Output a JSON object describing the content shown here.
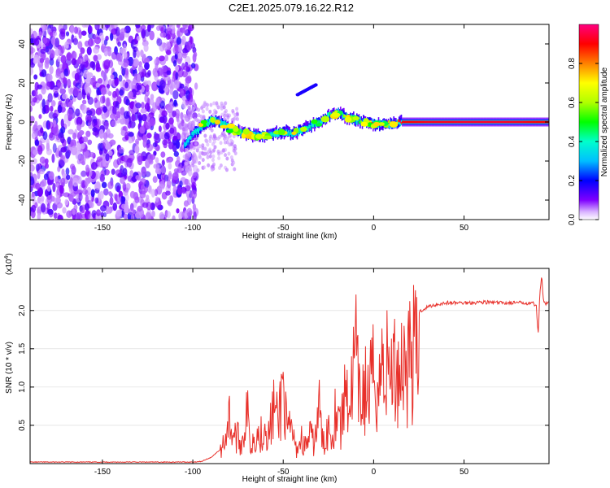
{
  "title": "C2E1.2025.079.16.22.R12",
  "chart_data": [
    {
      "type": "heatmap",
      "xlabel": "Height of straight line (km)",
      "ylabel": "Frequency (Hz)",
      "xlim": [
        -190,
        97
      ],
      "ylim": [
        -50,
        50
      ],
      "xticks": [
        -150,
        -100,
        -50,
        0,
        50
      ],
      "yticks": [
        -40,
        -20,
        0,
        20,
        40
      ],
      "colorbar": {
        "label": "Normalized spectral amplitude",
        "range": [
          0,
          1
        ],
        "ticks": [
          "0.0",
          "0.2",
          "0.4",
          "0.6",
          "0.8"
        ],
        "tick_values": [
          0.0,
          0.2,
          0.4,
          0.6,
          0.8
        ],
        "colors": [
          "#ffffff",
          "#d9b3ff",
          "#7f00ff",
          "#0000ff",
          "#00bfff",
          "#00ffcc",
          "#00ff00",
          "#b0ff00",
          "#ffff00",
          "#ff8000",
          "#ff0000",
          "#ff0080"
        ]
      },
      "ridge": {
        "x": [
          -105,
          -100,
          -95,
          -90,
          -85,
          -80,
          -75,
          -70,
          -65,
          -60,
          -55,
          -50,
          -45,
          -40,
          -35,
          -30,
          -25,
          -20,
          -15,
          -10,
          -5,
          0,
          5,
          10,
          15,
          20,
          30,
          40,
          50,
          60,
          70,
          80,
          90,
          97
        ],
        "y": [
          -12,
          -6,
          -2,
          1,
          0,
          -3,
          -5,
          -6,
          -7,
          -7,
          -6,
          -5,
          -6,
          -4,
          -2,
          0,
          3,
          5,
          2,
          1,
          0,
          -1,
          -1,
          -1,
          0,
          0,
          0,
          0,
          0,
          0,
          0,
          0,
          0,
          0
        ],
        "amplitude": [
          0.3,
          0.35,
          0.4,
          0.45,
          0.4,
          0.35,
          0.4,
          0.38,
          0.36,
          0.38,
          0.35,
          0.4,
          0.35,
          0.4,
          0.35,
          0.4,
          0.45,
          0.5,
          0.5,
          0.6,
          0.65,
          0.8,
          0.8,
          0.7,
          0.9,
          0.9,
          0.92,
          0.92,
          0.93,
          0.93,
          0.93,
          0.92,
          0.9,
          0.9
        ]
      },
      "secondary_streak": {
        "x": [
          -42,
          -32
        ],
        "y": [
          14,
          19
        ],
        "amplitude": 0.18
      }
    },
    {
      "type": "line",
      "xlabel": "Height of straight line (km)",
      "ylabel": "SNR (10 * v/v)",
      "yscale_label": "(x10",
      "yscale_exp": "4",
      "yscale_close": ")",
      "xlim": [
        -190,
        97
      ],
      "ylim": [
        0,
        2.55
      ],
      "xticks": [
        -150,
        -100,
        -50,
        0,
        50
      ],
      "yticks": [
        "0.5",
        "1.0",
        "1.5",
        "2.0"
      ],
      "ytick_values": [
        0.5,
        1.0,
        1.5,
        2.0
      ],
      "series": [
        {
          "color": "#e8302a",
          "x": [
            -190,
            -150,
            -110,
            -100,
            -95,
            -90,
            -85,
            -82,
            -80,
            -78,
            -75,
            -73,
            -70,
            -68,
            -65,
            -63,
            -60,
            -58,
            -55,
            -53,
            -50,
            -48,
            -45,
            -43,
            -40,
            -38,
            -35,
            -33,
            -30,
            -28,
            -25,
            -23,
            -20,
            -18,
            -15,
            -13,
            -10,
            -8,
            -5,
            -3,
            0,
            3,
            5,
            8,
            10,
            13,
            15,
            18,
            20,
            25,
            30,
            35,
            40,
            50,
            60,
            70,
            80,
            85,
            88,
            90,
            91,
            92,
            93,
            94,
            95,
            97
          ],
          "y": [
            0.02,
            0.02,
            0.02,
            0.02,
            0.03,
            0.08,
            0.18,
            0.5,
            0.85,
            0.55,
            0.45,
            0.35,
            0.95,
            0.3,
            0.6,
            0.45,
            0.75,
            0.5,
            1.05,
            0.7,
            1.5,
            0.55,
            0.6,
            0.25,
            0.45,
            0.3,
            0.5,
            0.35,
            1.0,
            0.3,
            0.7,
            0.5,
            1.2,
            0.6,
            1.55,
            1.0,
            2.05,
            1.1,
            1.35,
            1.2,
            1.6,
            1.4,
            1.85,
            1.7,
            1.75,
            1.6,
            1.85,
            1.8,
            1.95,
            1.98,
            2.05,
            2.08,
            2.1,
            2.1,
            2.11,
            2.1,
            2.1,
            2.1,
            2.1,
            2.05,
            1.7,
            2.25,
            2.45,
            2.1,
            2.08,
            2.1
          ]
        }
      ]
    }
  ]
}
